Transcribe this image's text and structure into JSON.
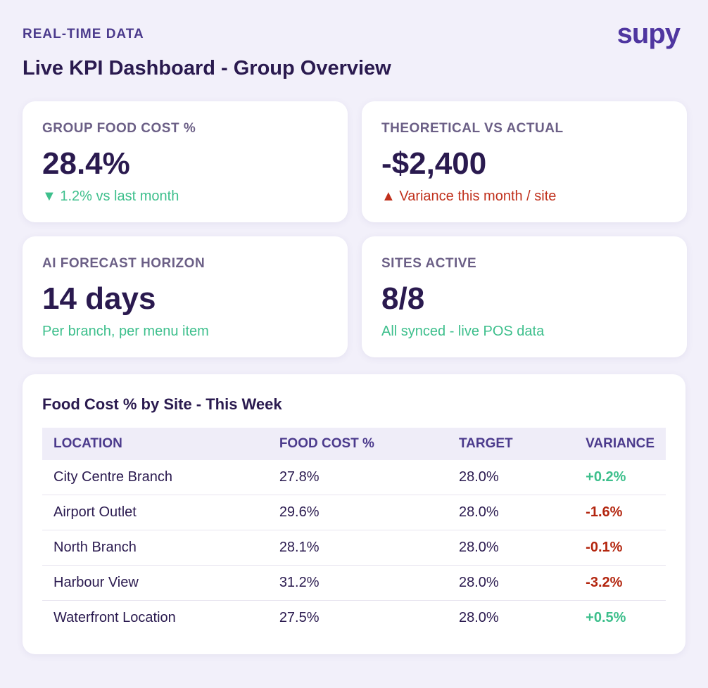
{
  "header": {
    "eyebrow": "REAL-TIME DATA",
    "title": "Live KPI Dashboard - Group Overview",
    "logo": "supy"
  },
  "kpis": [
    {
      "label": "GROUP FOOD COST %",
      "value": "28.4%",
      "note": "▼ 1.2% vs last month",
      "color": "#3dbf8c"
    },
    {
      "label": "THEORETICAL VS ACTUAL",
      "value": "-$2,400",
      "note": "▲ Variance this month / site",
      "color": "#c0301c"
    },
    {
      "label": "AI FORECAST HORIZON",
      "value": "14 days",
      "note": "Per branch, per menu item",
      "color": "#3dbf8c"
    },
    {
      "label": "SITES ACTIVE",
      "value": "8/8",
      "note": "All synced - live POS data",
      "color": "#3dbf8c"
    }
  ],
  "table": {
    "title": "Food Cost % by Site - This Week",
    "columns": [
      "LOCATION",
      "FOOD COST %",
      "TARGET",
      "VARIANCE"
    ],
    "rows": [
      [
        "City Centre Branch",
        "27.8%",
        "28.0%",
        "+0.2%"
      ],
      [
        "Airport Outlet",
        "29.6%",
        "28.0%",
        "-1.6%"
      ],
      [
        "North Branch",
        "28.1%",
        "28.0%",
        "-0.1%"
      ],
      [
        "Harbour View",
        "31.2%",
        "28.0%",
        "-3.2%"
      ],
      [
        "Waterfront Location",
        "27.5%",
        "28.0%",
        "+0.5%"
      ]
    ],
    "positive_color": "#3dbf8c",
    "negative_color": "#b3260f"
  }
}
